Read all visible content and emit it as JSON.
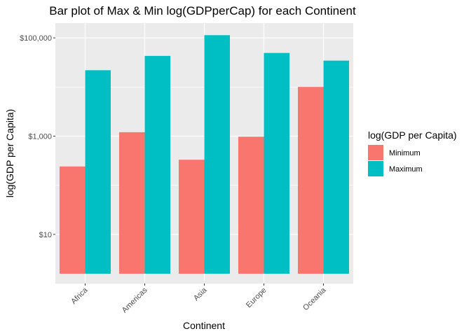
{
  "chart_data": {
    "type": "bar",
    "title": "Bar plot of Max & Min log(GDPperCap) for each Continent",
    "xlabel": "Continent",
    "ylabel": "log(GDP per Capita)",
    "categories": [
      "Africa",
      "Americas",
      "Asia",
      "Europe",
      "Oceania"
    ],
    "y_scale": "log10",
    "ylim": [
      1,
      200000
    ],
    "y_ticks": [
      10,
      1000,
      100000
    ],
    "y_tick_labels": [
      "$10",
      "$1,000",
      "$100,000"
    ],
    "series": [
      {
        "name": "Minimum",
        "color": "#F8766D",
        "values": [
          241,
          1201,
          331,
          974,
          10040
        ]
      },
      {
        "name": "Maximum",
        "color": "#00BFC4",
        "values": [
          21951,
          42952,
          113523,
          49357,
          34435
        ]
      }
    ],
    "legend": {
      "title": "log(GDP per Capita)",
      "position": "right"
    },
    "grid": true,
    "panel_background": "#EBEBEB",
    "grid_color": "#FFFFFF"
  }
}
